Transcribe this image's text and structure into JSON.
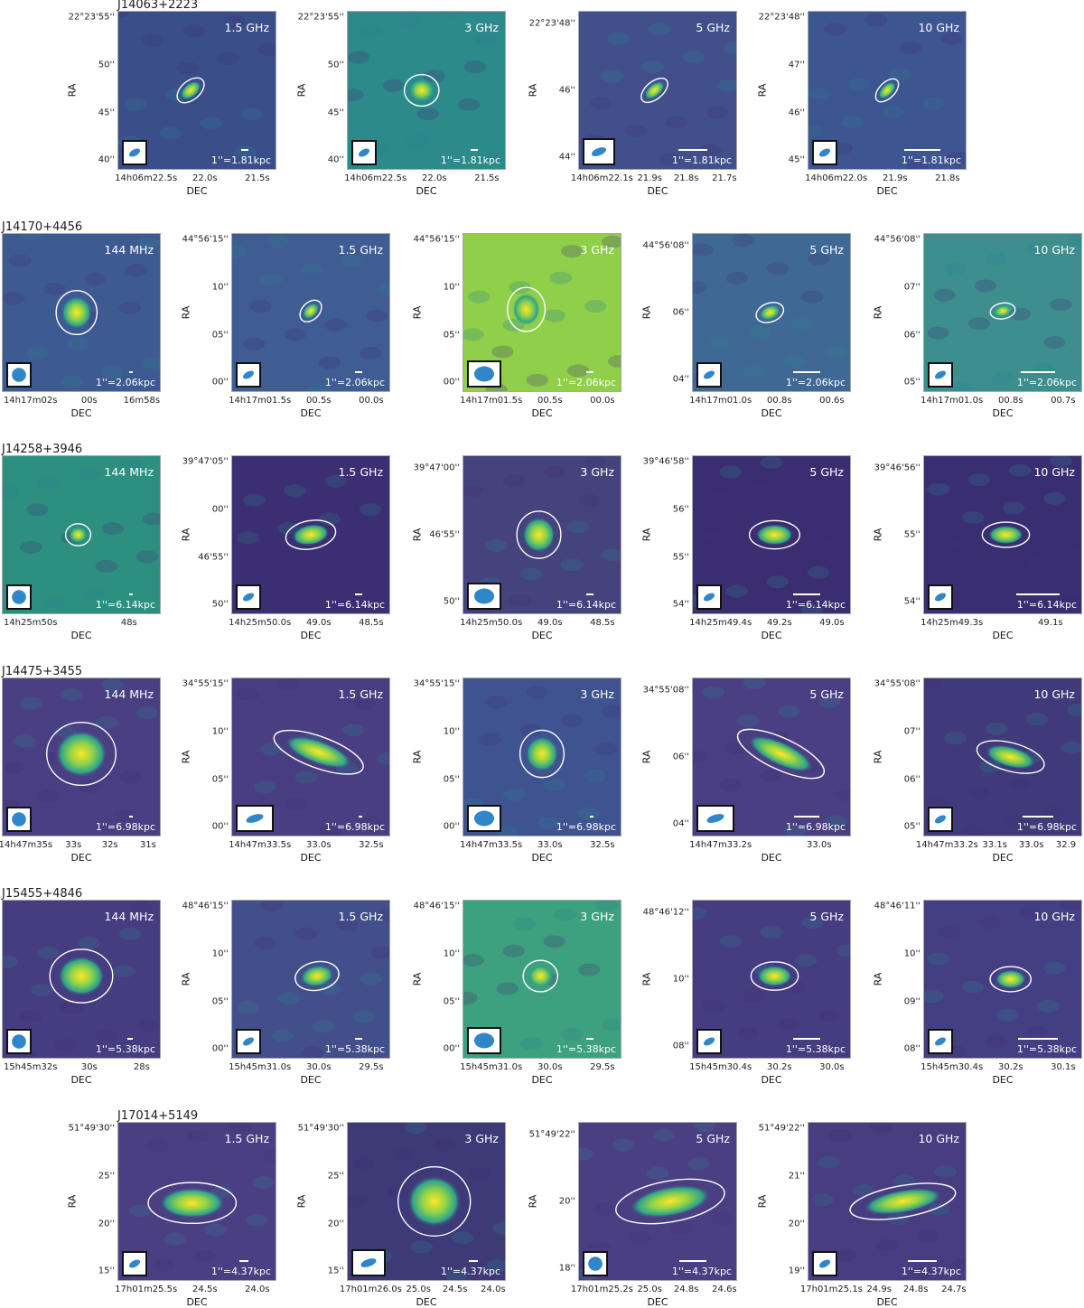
{
  "colors": {
    "low": "#3e2f72",
    "mid": "#2a7f8e",
    "high": "#fde725",
    "contour": "#ffffff",
    "beam": "#2f86c8"
  },
  "axis_labels": {
    "y": "RA",
    "x": "DEC"
  },
  "rows": [
    {
      "title": "J14063+2223",
      "panels": [
        {
          "freq": "1.5 GHz",
          "scale": "1''=1.81kpc",
          "yticks": [
            "22°23'55''",
            "50''",
            "45''",
            "40''"
          ],
          "xticks": [
            "14h06m22.5s",
            "22.0s",
            "21.5s"
          ]
        },
        {
          "freq": "3 GHz",
          "scale": "1''=1.81kpc",
          "yticks": [
            "22°23'55''",
            "50''",
            "45''",
            "40''"
          ],
          "xticks": [
            "14h06m22.5s",
            "22.0s",
            "21.5s"
          ]
        },
        {
          "freq": "5 GHz",
          "scale": "1''=1.81kpc",
          "yticks": [
            "22°23'48''",
            "46''",
            "44''"
          ],
          "xticks": [
            "14h06m22.1s",
            "21.9s",
            "21.8s",
            "21.7s"
          ]
        },
        {
          "freq": "10 GHz",
          "scale": "1''=1.81kpc",
          "yticks": [
            "22°23'48''",
            "47''",
            "46''",
            "45''"
          ],
          "xticks": [
            "14h06m22.0s",
            "21.9s",
            "21.8s"
          ]
        }
      ]
    },
    {
      "title": "J14170+4456",
      "panels": [
        {
          "freq": "144 MHz",
          "scale": "1''=2.06kpc",
          "yticks": [],
          "xticks": [
            "14h17m02s",
            "00s",
            "16m58s"
          ]
        },
        {
          "freq": "1.5 GHz",
          "scale": "1''=2.06kpc",
          "yticks": [
            "44°56'15''",
            "10''",
            "05''",
            "00''"
          ],
          "xticks": [
            "14h17m01.5s",
            "00.5s",
            "00.0s"
          ]
        },
        {
          "freq": "3 GHz",
          "scale": "1''=2.06kpc",
          "yticks": [
            "44°56'15''",
            "10''",
            "05''",
            "00''"
          ],
          "xticks": [
            "14h17m01.5s",
            "00.5s",
            "00.0s"
          ]
        },
        {
          "freq": "5 GHz",
          "scale": "1''=2.06kpc",
          "yticks": [
            "44°56'08''",
            "06''",
            "04''"
          ],
          "xticks": [
            "14h17m01.0s",
            "00.8s",
            "00.6s"
          ]
        },
        {
          "freq": "10 GHz",
          "scale": "1''=2.06kpc",
          "yticks": [
            "44°56'08''",
            "07''",
            "06''",
            "05''"
          ],
          "xticks": [
            "14h17m01.0s",
            "00.8s",
            "00.7s"
          ]
        }
      ]
    },
    {
      "title": "J14258+3946",
      "panels": [
        {
          "freq": "144 MHz",
          "scale": "1''=6.14kpc",
          "yticks": [],
          "xticks": [
            "14h25m50s",
            "48s"
          ]
        },
        {
          "freq": "1.5 GHz",
          "scale": "1''=6.14kpc",
          "yticks": [
            "39°47'05''",
            "00''",
            "46'55''",
            "50''"
          ],
          "xticks": [
            "14h25m50.0s",
            "49.0s",
            "48.5s"
          ]
        },
        {
          "freq": "3 GHz",
          "scale": "1''=6.14kpc",
          "yticks": [
            "39°47'00''",
            "46'55''",
            "50''"
          ],
          "xticks": [
            "14h25m50.0s",
            "49.0s",
            "48.5s"
          ]
        },
        {
          "freq": "5 GHz",
          "scale": "1''=6.14kpc",
          "yticks": [
            "39°46'58''",
            "56''",
            "55''",
            "54''"
          ],
          "xticks": [
            "14h25m49.4s",
            "49.2s",
            "49.0s"
          ]
        },
        {
          "freq": "10 GHz",
          "scale": "1''=6.14kpc",
          "yticks": [
            "39°46'56''",
            "55''",
            "54''"
          ],
          "xticks": [
            "14h25m49.3s",
            "49.1s"
          ]
        }
      ]
    },
    {
      "title": "J14475+3455",
      "panels": [
        {
          "freq": "144 MHz",
          "scale": "1''=6.98kpc",
          "yticks": [],
          "xticks": [
            "14h47m35s",
            "33s",
            "32s",
            "31s"
          ]
        },
        {
          "freq": "1.5 GHz",
          "scale": "1''=6.98kpc",
          "yticks": [
            "34°55'15''",
            "10''",
            "05''",
            "00''"
          ],
          "xticks": [
            "14h47m33.5s",
            "33.0s",
            "32.5s"
          ]
        },
        {
          "freq": "3 GHz",
          "scale": "1''=6.98kpc",
          "yticks": [
            "34°55'15''",
            "10''",
            "05''",
            "00''"
          ],
          "xticks": [
            "14h47m33.5s",
            "33.0s",
            "32.5s"
          ]
        },
        {
          "freq": "5 GHz",
          "scale": "1''=6.98kpc",
          "yticks": [
            "34°55'08''",
            "06''",
            "04''"
          ],
          "xticks": [
            "14h47m33.2s",
            "33.0s"
          ]
        },
        {
          "freq": "10 GHz",
          "scale": "1''=6.98kpc",
          "yticks": [
            "34°55'08''",
            "07''",
            "06''",
            "05''"
          ],
          "xticks": [
            "14h47m33.2s",
            "33.1s",
            "33.0s",
            "32.9"
          ]
        }
      ]
    },
    {
      "title": "J15455+4846",
      "panels": [
        {
          "freq": "144 MHz",
          "scale": "1''=5.38kpc",
          "yticks": [],
          "xticks": [
            "15h45m32s",
            "30s",
            "28s"
          ]
        },
        {
          "freq": "1.5 GHz",
          "scale": "1''=5.38kpc",
          "yticks": [
            "48°46'15''",
            "10''",
            "05''",
            "00''"
          ],
          "xticks": [
            "15h45m31.0s",
            "30.0s",
            "29.5s"
          ]
        },
        {
          "freq": "3 GHz",
          "scale": "1''=5.38kpc",
          "yticks": [
            "48°46'15''",
            "10''",
            "05''",
            "00''"
          ],
          "xticks": [
            "15h45m31.0s",
            "30.0s",
            "29.5s"
          ]
        },
        {
          "freq": "5 GHz",
          "scale": "1''=5.38kpc",
          "yticks": [
            "48°46'12''",
            "10''",
            "08''"
          ],
          "xticks": [
            "15h45m30.4s",
            "30.2s",
            "30.0s"
          ]
        },
        {
          "freq": "10 GHz",
          "scale": "1''=5.38kpc",
          "yticks": [
            "48°46'11''",
            "10''",
            "09''",
            "08''"
          ],
          "xticks": [
            "15h45m30.4s",
            "30.2s",
            "30.1s"
          ]
        }
      ]
    },
    {
      "title": "J17014+5149",
      "panels": [
        {
          "freq": "1.5 GHz",
          "scale": "1''=4.37kpc",
          "yticks": [
            "51°49'30''",
            "25''",
            "20''",
            "15''"
          ],
          "xticks": [
            "17h01m25.5s",
            "24.5s",
            "24.0s"
          ]
        },
        {
          "freq": "3 GHz",
          "scale": "1''=4.37kpc",
          "yticks": [
            "51°49'30''",
            "25''",
            "20''",
            "15''"
          ],
          "xticks": [
            "17h01m26.0s",
            "25.0s",
            "24.5s",
            "24.0s"
          ]
        },
        {
          "freq": "5 GHz",
          "scale": "1''=4.37kpc",
          "yticks": [
            "51°49'22''",
            "20''",
            "18''"
          ],
          "xticks": [
            "17h01m25.2s",
            "25.0s",
            "24.8s",
            "24.6s"
          ]
        },
        {
          "freq": "10 GHz",
          "scale": "1''=4.37kpc",
          "yticks": [
            "51°49'22''",
            "21''",
            "20''",
            "19''"
          ],
          "xticks": [
            "17h01m25.1s",
            "24.9s",
            "24.8s",
            "24.7s"
          ]
        }
      ]
    }
  ]
}
